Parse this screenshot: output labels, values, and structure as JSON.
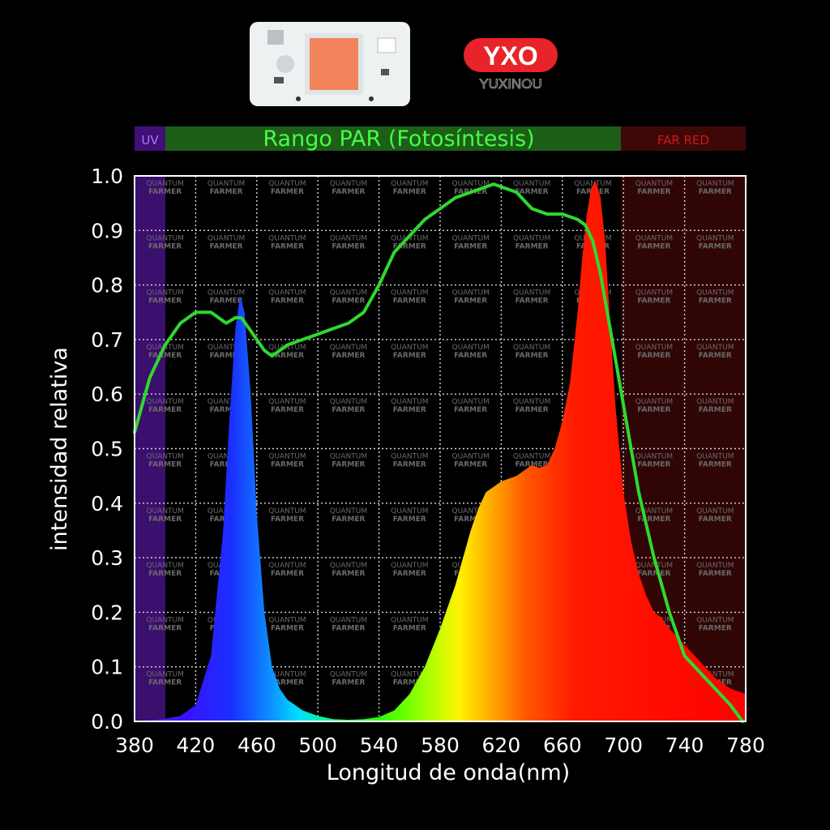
{
  "brand": {
    "logo_text": "YXO",
    "logo_subtext": "YUXINOU",
    "logo_color": "#e8232a"
  },
  "product_image": "cob-led-chip",
  "watermark": [
    "QUANTUM",
    "FARMER"
  ],
  "chart_data": {
    "type": "area",
    "xlabel": "Longitud de onda(nm)",
    "ylabel": "intensidad relativa",
    "xlim": [
      380,
      780
    ],
    "ylim": [
      0,
      1.0
    ],
    "xticks": [
      380,
      420,
      460,
      500,
      540,
      580,
      620,
      660,
      700,
      740,
      780
    ],
    "yticks": [
      "0.0",
      "0.1",
      "0.2",
      "0.3",
      "0.4",
      "0.5",
      "0.6",
      "0.7",
      "0.8",
      "0.9",
      "1.0"
    ],
    "grid": true,
    "bands": [
      {
        "label": "UV",
        "from": 380,
        "to": 400,
        "color": "#5a1fa0"
      },
      {
        "label": "Rango PAR (Fotosíntesis)",
        "from": 400,
        "to": 700,
        "color": "#1f6e1a"
      },
      {
        "label": "FAR RED",
        "from": 700,
        "to": 780,
        "color": "#5a0b0b"
      }
    ],
    "series": [
      {
        "kind": "led-spectrum",
        "fill": "spectral-gradient",
        "x": [
          380,
          400,
          410,
          420,
          430,
          438,
          442,
          446,
          449,
          452,
          456,
          460,
          465,
          470,
          475,
          480,
          490,
          500,
          510,
          520,
          530,
          540,
          550,
          560,
          570,
          580,
          590,
          600,
          605,
          610,
          615,
          620,
          625,
          630,
          640,
          645,
          650,
          655,
          660,
          665,
          670,
          673,
          676,
          679,
          682,
          685,
          688,
          691,
          695,
          700,
          705,
          710,
          715,
          720,
          725,
          730,
          740,
          750,
          760,
          770,
          780
        ],
        "y": [
          0.0,
          0.005,
          0.01,
          0.03,
          0.12,
          0.35,
          0.55,
          0.72,
          0.78,
          0.75,
          0.6,
          0.38,
          0.2,
          0.1,
          0.06,
          0.04,
          0.02,
          0.01,
          0.004,
          0.003,
          0.004,
          0.008,
          0.02,
          0.05,
          0.1,
          0.17,
          0.25,
          0.35,
          0.39,
          0.42,
          0.43,
          0.44,
          0.445,
          0.45,
          0.47,
          0.465,
          0.47,
          0.5,
          0.55,
          0.62,
          0.75,
          0.85,
          0.93,
          0.98,
          0.99,
          0.96,
          0.88,
          0.74,
          0.57,
          0.42,
          0.33,
          0.27,
          0.23,
          0.2,
          0.19,
          0.17,
          0.14,
          0.11,
          0.08,
          0.06,
          0.05
        ]
      },
      {
        "kind": "photosynthesis-curve",
        "color": "#2fd82f",
        "x": [
          380,
          390,
          400,
          410,
          420,
          430,
          440,
          446,
          450,
          455,
          460,
          465,
          470,
          475,
          480,
          490,
          500,
          510,
          520,
          525,
          530,
          540,
          550,
          560,
          570,
          580,
          590,
          600,
          610,
          615,
          620,
          630,
          640,
          650,
          655,
          660,
          670,
          675,
          680,
          685,
          690,
          700,
          710,
          720,
          730,
          740,
          760,
          770,
          778
        ],
        "y": [
          0.53,
          0.63,
          0.69,
          0.73,
          0.75,
          0.75,
          0.73,
          0.74,
          0.74,
          0.72,
          0.7,
          0.68,
          0.67,
          0.68,
          0.69,
          0.7,
          0.71,
          0.72,
          0.73,
          0.74,
          0.75,
          0.8,
          0.86,
          0.89,
          0.92,
          0.94,
          0.96,
          0.97,
          0.98,
          0.985,
          0.98,
          0.97,
          0.94,
          0.93,
          0.93,
          0.93,
          0.92,
          0.91,
          0.88,
          0.82,
          0.74,
          0.58,
          0.42,
          0.3,
          0.2,
          0.12,
          0.06,
          0.03,
          0.0
        ]
      }
    ]
  }
}
